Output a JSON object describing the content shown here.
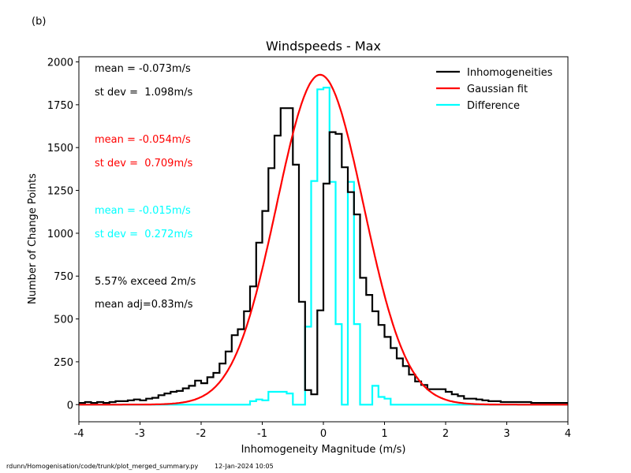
{
  "panel_label": "(b)",
  "footer": {
    "script_path": "rdunn/Homogenisation/code/trunk/plot_merged_summary.py",
    "timestamp": "12-Jan-2024 10:05"
  },
  "colors": {
    "inhomogeneities": "#000000",
    "gaussian": "#ff0000",
    "difference": "#00ffff"
  },
  "chart_data": {
    "type": "line",
    "title": "Windspeeds - Max",
    "xlabel": "Inhomogeneity Magnitude (m/s)",
    "ylabel": "Number of Change Points",
    "xlim": [
      -4,
      4
    ],
    "ylim": [
      -100,
      2030
    ],
    "xticks": [
      -4,
      -3,
      -2,
      -1,
      0,
      1,
      2,
      3,
      4
    ],
    "yticks": [
      0,
      250,
      500,
      750,
      1000,
      1250,
      1500,
      1750,
      2000
    ],
    "legend_position": "top-right",
    "grid": false,
    "bin_edges_start": -4.0,
    "bin_width": 0.1,
    "series": [
      {
        "name": "Inhomogeneities",
        "style": "step",
        "values": [
          10,
          15,
          10,
          15,
          10,
          15,
          20,
          20,
          25,
          30,
          25,
          35,
          40,
          55,
          65,
          75,
          80,
          95,
          110,
          140,
          125,
          160,
          185,
          240,
          310,
          405,
          440,
          545,
          690,
          945,
          1130,
          1380,
          1570,
          1730,
          1730,
          1400,
          600,
          85,
          60,
          550,
          1290,
          1590,
          1580,
          1385,
          1240,
          1110,
          740,
          640,
          545,
          465,
          395,
          330,
          270,
          225,
          175,
          135,
          115,
          90,
          90,
          90,
          75,
          60,
          50,
          35,
          35,
          30,
          25,
          20,
          20,
          15,
          15,
          15,
          15,
          15,
          10,
          10,
          10,
          10,
          10,
          10
        ]
      },
      {
        "name": "Gaussian fit",
        "style": "line",
        "mean": -0.054,
        "stdev": 0.709,
        "peak": 1925
      },
      {
        "name": "Difference",
        "style": "step",
        "values": [
          0,
          0,
          0,
          0,
          0,
          0,
          0,
          0,
          0,
          0,
          0,
          0,
          0,
          0,
          0,
          0,
          0,
          0,
          0,
          0,
          0,
          0,
          0,
          0,
          0,
          0,
          0,
          0,
          20,
          30,
          25,
          45,
          70,
          75,
          65,
          40,
          0,
          0,
          0,
          0,
          0,
          0,
          1850,
          1850,
          1300,
          470,
          0,
          0,
          0,
          0,
          0,
          0,
          0,
          0,
          0,
          0,
          0,
          0,
          0,
          0,
          0,
          0,
          0,
          0,
          0,
          0,
          0,
          0,
          0,
          0,
          0,
          0,
          0,
          0,
          0,
          0,
          0,
          0,
          0,
          0
        ],
        "override_segments": [
          [
            -0.9,
            -0.8,
            75
          ],
          [
            -0.8,
            -0.7,
            75
          ],
          [
            -0.5,
            -0.4,
            0
          ],
          [
            -0.3,
            -0.2,
            455
          ],
          [
            -0.2,
            -0.1,
            1305
          ],
          [
            -0.1,
            0.0,
            1840
          ],
          [
            0.0,
            0.1,
            1850
          ],
          [
            0.1,
            0.2,
            1300
          ],
          [
            0.2,
            0.3,
            470
          ],
          [
            0.3,
            0.4,
            0
          ],
          [
            0.8,
            0.9,
            110
          ],
          [
            0.9,
            1.0,
            45
          ],
          [
            1.0,
            1.1,
            35
          ],
          [
            1.1,
            1.2,
            0
          ]
        ]
      }
    ],
    "annotations": [
      {
        "text": "mean = -0.073m/s",
        "color": "#000000"
      },
      {
        "text": "st dev =  1.098m/s",
        "color": "#000000"
      },
      {
        "text": "mean = -0.054m/s",
        "color": "#ff0000"
      },
      {
        "text": "st dev =  0.709m/s",
        "color": "#ff0000"
      },
      {
        "text": "mean = -0.015m/s",
        "color": "#00ffff"
      },
      {
        "text": "st dev =  0.272m/s",
        "color": "#00ffff"
      },
      {
        "text": "5.57% exceed 2m/s",
        "color": "#000000"
      },
      {
        "text": "mean adj=0.83m/s",
        "color": "#000000"
      }
    ]
  }
}
